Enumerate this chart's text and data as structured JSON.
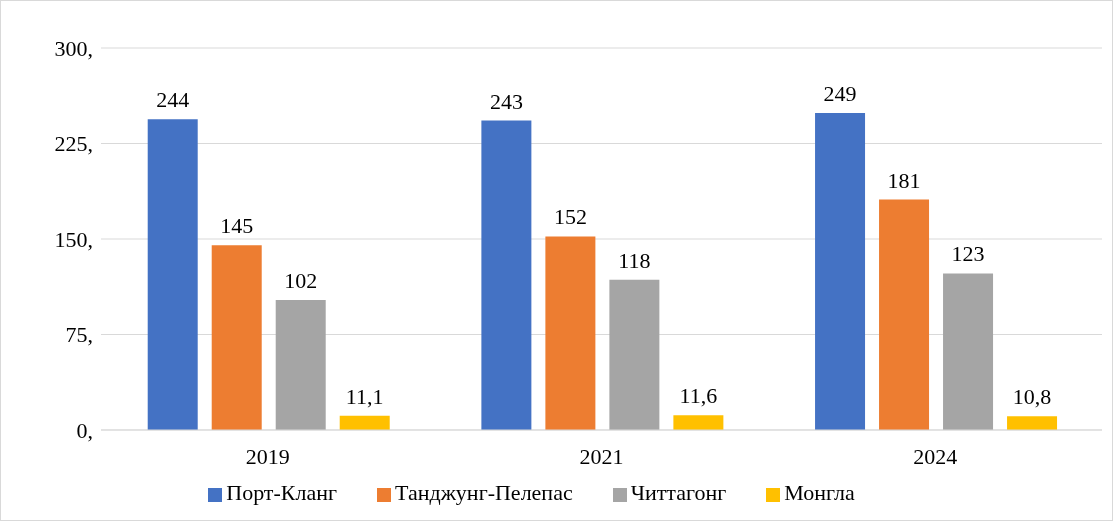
{
  "chart_data": {
    "type": "bar",
    "categories": [
      "2019",
      "2021",
      "2024"
    ],
    "series": [
      {
        "name": "Порт-Кланг",
        "color": "#4472c4",
        "values": [
          244,
          243,
          249
        ],
        "value_labels": [
          "244",
          "243",
          "249"
        ]
      },
      {
        "name": "Танджунг-Пелепас",
        "color": "#ed7d31",
        "values": [
          145,
          152,
          181
        ],
        "value_labels": [
          "145",
          "152",
          "181"
        ]
      },
      {
        "name": "Читтагонг",
        "color": "#a5a5a5",
        "values": [
          102,
          118,
          123
        ],
        "value_labels": [
          "102",
          "118",
          "123"
        ]
      },
      {
        "name": "Монгла",
        "color": "#ffc000",
        "values": [
          11.1,
          11.6,
          10.8
        ],
        "value_labels": [
          "11,1",
          "11,6",
          "10,8"
        ]
      }
    ],
    "ylim": [
      0,
      300
    ],
    "yticks": [
      {
        "value": 0,
        "label": "0,"
      },
      {
        "value": 75,
        "label": "75,"
      },
      {
        "value": 150,
        "label": "150,"
      },
      {
        "value": 225,
        "label": "225,"
      },
      {
        "value": 300,
        "label": "300,"
      }
    ],
    "grid": "y",
    "legend": "bottom"
  }
}
